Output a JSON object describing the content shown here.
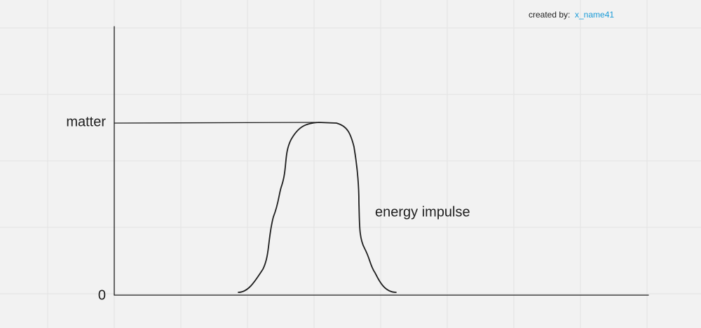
{
  "credit": {
    "label": "created by:",
    "author": "x_name41"
  },
  "axis": {
    "y_top_label": "matter",
    "y_zero_label": "0"
  },
  "curve": {
    "label": "energy impulse"
  }
}
